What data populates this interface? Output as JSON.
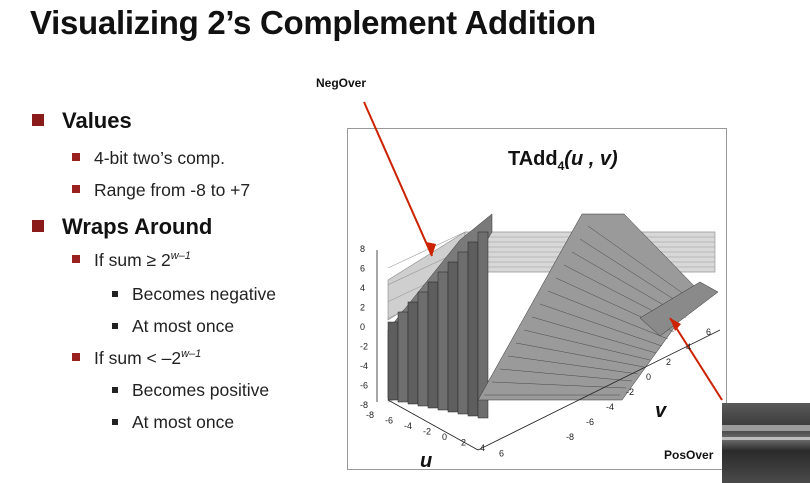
{
  "slide": {
    "title": "Visualizing 2’s Complement Addition",
    "bullets": {
      "values": "Values",
      "values_sub1": "4-bit two’s comp.",
      "values_sub2": "Range from -8 to +7",
      "wraps": "Wraps Around",
      "if_sum_ge": "If sum ≥ 2",
      "exp1": "w–1",
      "becomes_negative": "Becomes negative",
      "at_most_once_1": "At most once",
      "if_sum_lt": "If sum < –2",
      "exp2": "w–1",
      "becomes_positive": "Becomes positive",
      "at_most_once_2": "At most once"
    }
  },
  "plot": {
    "title_main": "TAdd",
    "title_sub": "4",
    "title_args": "(u , v)",
    "neg_label": "NegOver",
    "pos_label": "PosOver",
    "u_label": "u",
    "v_label": "v",
    "z_ticks": [
      "8",
      "6",
      "4",
      "2",
      "0",
      "-2",
      "-4",
      "-6",
      "-8"
    ],
    "u_ticks": [
      "-8",
      "-6",
      "-4",
      "-2",
      "0",
      "2",
      "4",
      "6"
    ],
    "v_ticks": [
      "-8",
      "-6",
      "-4",
      "-2",
      "0",
      "2",
      "4",
      "6"
    ]
  },
  "colors": {
    "bullet_l1": "#8b1a1a",
    "bullet_l2": "#9b2020",
    "arrow": "#cc2200"
  }
}
